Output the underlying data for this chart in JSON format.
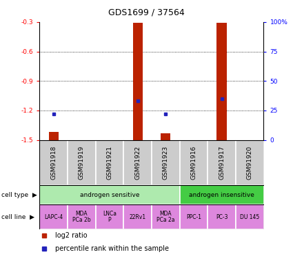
{
  "title": "GDS1699 / 37564",
  "samples": [
    "GSM91918",
    "GSM91919",
    "GSM91921",
    "GSM91922",
    "GSM91923",
    "GSM91916",
    "GSM91917",
    "GSM91920"
  ],
  "log2_ratio": [
    -1.42,
    null,
    null,
    -0.31,
    -1.43,
    null,
    -0.31,
    null
  ],
  "percentile_rank": [
    22,
    null,
    null,
    33,
    22,
    null,
    35,
    null
  ],
  "ylim_left": [
    -1.5,
    -0.3
  ],
  "ylim_right": [
    0,
    100
  ],
  "yticks_left": [
    -1.5,
    -1.2,
    -0.9,
    -0.6,
    -0.3
  ],
  "yticks_right": [
    0,
    25,
    50,
    75,
    100
  ],
  "cell_types": [
    {
      "label": "androgen sensitive",
      "start": 0,
      "end": 5,
      "color": "#aeeaae"
    },
    {
      "label": "androgen insensitive",
      "start": 5,
      "end": 8,
      "color": "#44cc44"
    }
  ],
  "cell_lines": [
    {
      "label": "LAPC-4",
      "start": 0,
      "end": 1
    },
    {
      "label": "MDA\nPCa 2b",
      "start": 1,
      "end": 2
    },
    {
      "label": "LNCa\nP",
      "start": 2,
      "end": 3
    },
    {
      "label": "22Rv1",
      "start": 3,
      "end": 4
    },
    {
      "label": "MDA\nPCa 2a",
      "start": 4,
      "end": 5
    },
    {
      "label": "PPC-1",
      "start": 5,
      "end": 6
    },
    {
      "label": "PC-3",
      "start": 6,
      "end": 7
    },
    {
      "label": "DU 145",
      "start": 7,
      "end": 8
    }
  ],
  "cell_line_color": "#dd88dd",
  "bar_color": "#bb2200",
  "dot_color": "#2222bb",
  "sample_bg_color": "#cccccc",
  "label_fontsize": 6.5,
  "title_fontsize": 9,
  "tick_fontsize": 6.5,
  "bar_width": 0.35
}
